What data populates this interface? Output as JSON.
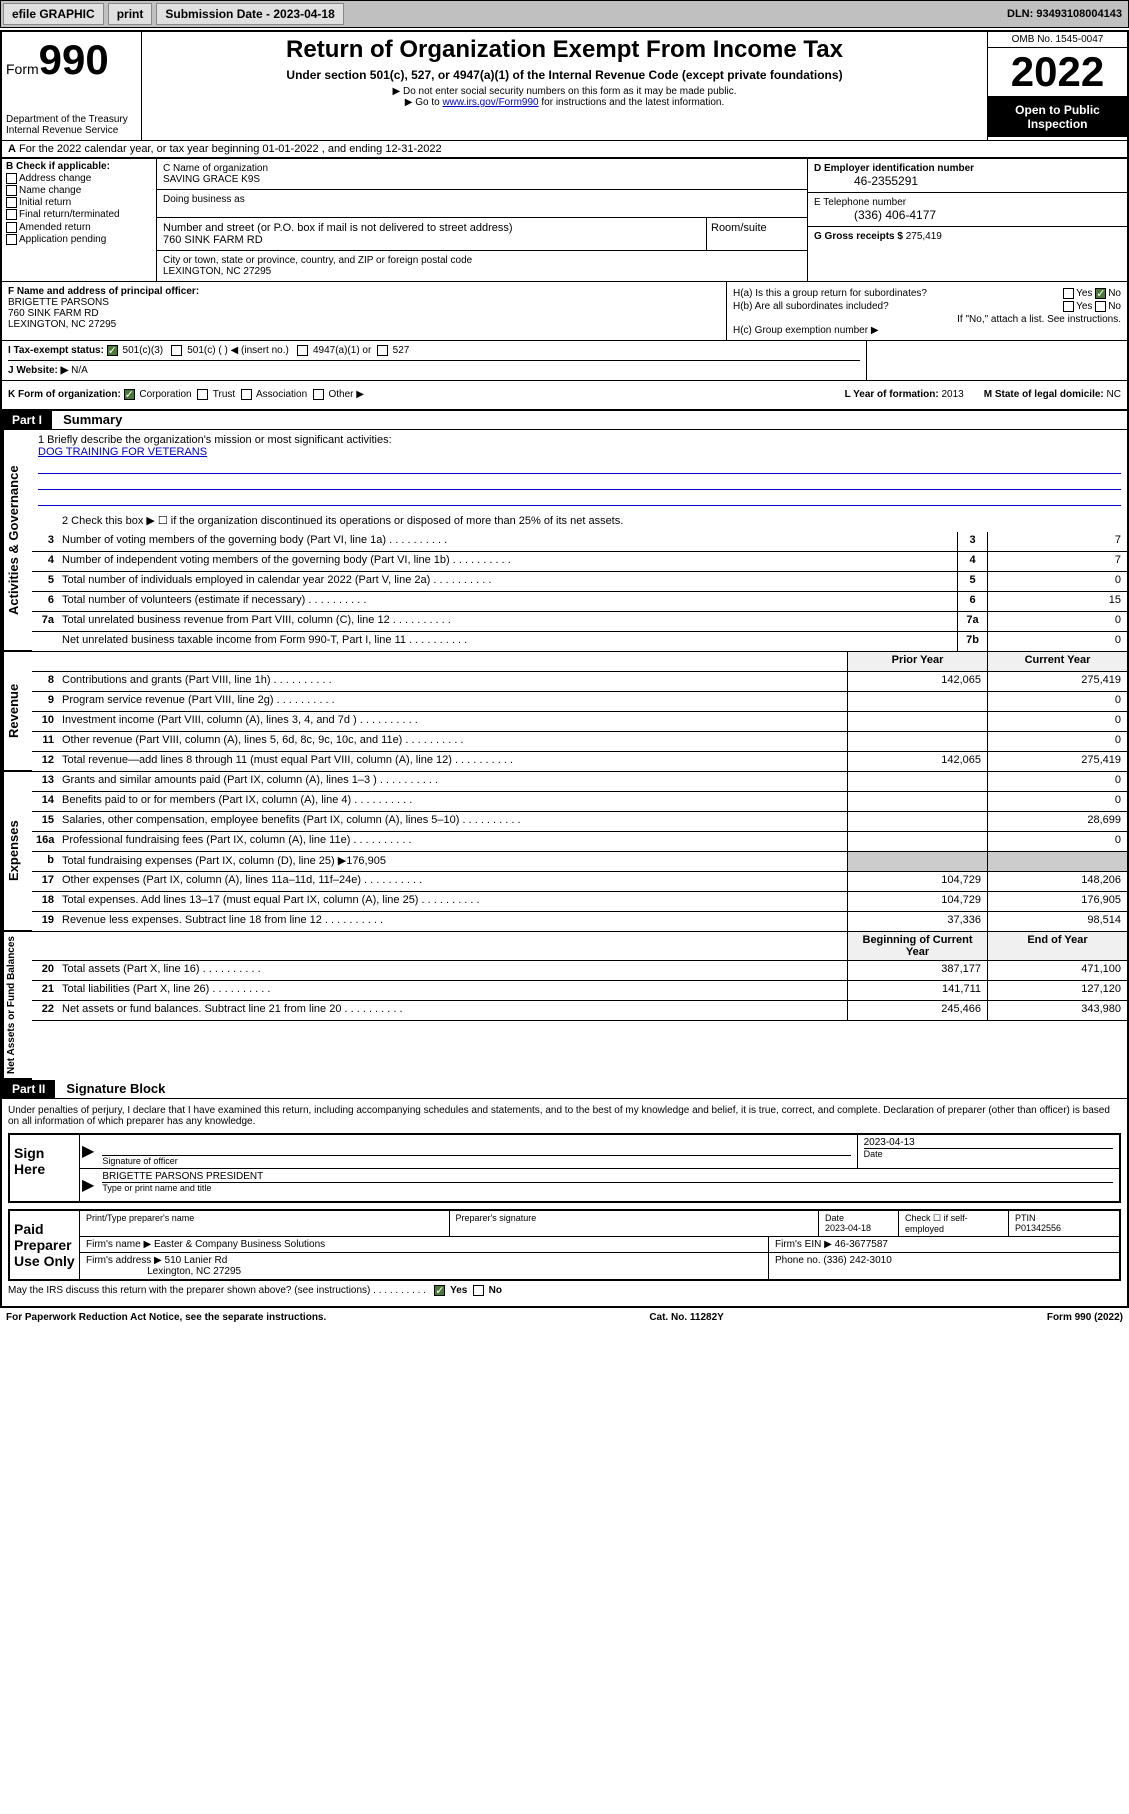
{
  "toolbar": {
    "efile": "efile GRAPHIC",
    "print": "print",
    "sub_label": "Submission Date - 2023-04-18",
    "dln": "DLN: 93493108004143"
  },
  "header": {
    "form_label": "Form",
    "form_num": "990",
    "dept": "Department of the Treasury",
    "irs": "Internal Revenue Service",
    "title": "Return of Organization Exempt From Income Tax",
    "subtitle": "Under section 501(c), 527, or 4947(a)(1) of the Internal Revenue Code (except private foundations)",
    "note1": "▶ Do not enter social security numbers on this form as it may be made public.",
    "note2_a": "▶ Go to ",
    "note2_link": "www.irs.gov/Form990",
    "note2_b": " for instructions and the latest information.",
    "omb": "OMB No. 1545-0047",
    "year": "2022",
    "inspect": "Open to Public Inspection"
  },
  "row_a": "For the 2022 calendar year, or tax year beginning 01-01-2022   , and ending 12-31-2022",
  "col_b": {
    "hdr": "B Check if applicable:",
    "opts": [
      "Address change",
      "Name change",
      "Initial return",
      "Final return/terminated",
      "Amended return",
      "Application pending"
    ]
  },
  "col_c": {
    "name_lbl": "C Name of organization",
    "name": "SAVING GRACE K9S",
    "dba_lbl": "Doing business as",
    "addr_lbl": "Number and street (or P.O. box if mail is not delivered to street address)",
    "addr": "760 SINK FARM RD",
    "room_lbl": "Room/suite",
    "city_lbl": "City or town, state or province, country, and ZIP or foreign postal code",
    "city": "LEXINGTON, NC  27295"
  },
  "col_d": {
    "ein_lbl": "D Employer identification number",
    "ein": "46-2355291",
    "tel_lbl": "E Telephone number",
    "tel": "(336) 406-4177",
    "gross_lbl": "G Gross receipts $",
    "gross": "275,419"
  },
  "col_f": {
    "lbl": "F  Name and address of principal officer:",
    "name": "BRIGETTE PARSONS",
    "addr1": "760 SINK FARM RD",
    "addr2": "LEXINGTON, NC  27295"
  },
  "col_h": {
    "ha": "H(a)  Is this a group return for subordinates?",
    "hb": "H(b)  Are all subordinates included?",
    "hb_note": "If \"No,\" attach a list. See instructions.",
    "hc": "H(c)  Group exemption number ▶"
  },
  "row_i": {
    "lbl": "I   Tax-exempt status:",
    "c3": "501(c)(3)",
    "c": "501(c) (   ) ◀ (insert no.)",
    "a1": "4947(a)(1) or",
    "s527": "527"
  },
  "row_j": {
    "lbl": "J   Website: ▶",
    "val": "N/A"
  },
  "row_k": {
    "lbl": "K Form of organization:",
    "corp": "Corporation",
    "trust": "Trust",
    "assoc": "Association",
    "other": "Other ▶",
    "l_lbl": "L Year of formation:",
    "l_val": "2013",
    "m_lbl": "M State of legal domicile:",
    "m_val": "NC"
  },
  "part1": {
    "hdr": "Part I",
    "title": "Summary"
  },
  "vtabs": {
    "gov": "Activities & Governance",
    "rev": "Revenue",
    "exp": "Expenses",
    "net": "Net Assets or Fund Balances"
  },
  "mission": {
    "lbl": "1    Briefly describe the organization's mission or most significant activities:",
    "txt": "DOG TRAINING FOR VETERANS"
  },
  "line2": "2    Check this box ▶ ☐ if the organization discontinued its operations or disposed of more than 25% of its net assets.",
  "gov_lines": [
    {
      "n": "3",
      "t": "Number of voting members of the governing body (Part VI, line 1a)",
      "c": "3",
      "v": "7"
    },
    {
      "n": "4",
      "t": "Number of independent voting members of the governing body (Part VI, line 1b)",
      "c": "4",
      "v": "7"
    },
    {
      "n": "5",
      "t": "Total number of individuals employed in calendar year 2022 (Part V, line 2a)",
      "c": "5",
      "v": "0"
    },
    {
      "n": "6",
      "t": "Total number of volunteers (estimate if necessary)",
      "c": "6",
      "v": "15"
    },
    {
      "n": "7a",
      "t": "Total unrelated business revenue from Part VIII, column (C), line 12",
      "c": "7a",
      "v": "0"
    },
    {
      "n": "",
      "t": "Net unrelated business taxable income from Form 990-T, Part I, line 11",
      "c": "7b",
      "v": "0"
    }
  ],
  "year_hdr": {
    "prior": "Prior Year",
    "curr": "Current Year"
  },
  "rev_lines": [
    {
      "n": "8",
      "t": "Contributions and grants (Part VIII, line 1h)",
      "p": "142,065",
      "c": "275,419"
    },
    {
      "n": "9",
      "t": "Program service revenue (Part VIII, line 2g)",
      "p": "",
      "c": "0"
    },
    {
      "n": "10",
      "t": "Investment income (Part VIII, column (A), lines 3, 4, and 7d )",
      "p": "",
      "c": "0"
    },
    {
      "n": "11",
      "t": "Other revenue (Part VIII, column (A), lines 5, 6d, 8c, 9c, 10c, and 11e)",
      "p": "",
      "c": "0"
    },
    {
      "n": "12",
      "t": "Total revenue—add lines 8 through 11 (must equal Part VIII, column (A), line 12)",
      "p": "142,065",
      "c": "275,419"
    }
  ],
  "exp_lines": [
    {
      "n": "13",
      "t": "Grants and similar amounts paid (Part IX, column (A), lines 1–3 )",
      "p": "",
      "c": "0"
    },
    {
      "n": "14",
      "t": "Benefits paid to or for members (Part IX, column (A), line 4)",
      "p": "",
      "c": "0"
    },
    {
      "n": "15",
      "t": "Salaries, other compensation, employee benefits (Part IX, column (A), lines 5–10)",
      "p": "",
      "c": "28,699"
    },
    {
      "n": "16a",
      "t": "Professional fundraising fees (Part IX, column (A), line 11e)",
      "p": "",
      "c": "0"
    },
    {
      "n": "b",
      "t": "Total fundraising expenses (Part IX, column (D), line 25) ▶176,905",
      "p": null,
      "c": null
    },
    {
      "n": "17",
      "t": "Other expenses (Part IX, column (A), lines 11a–11d, 11f–24e)",
      "p": "104,729",
      "c": "148,206"
    },
    {
      "n": "18",
      "t": "Total expenses. Add lines 13–17 (must equal Part IX, column (A), line 25)",
      "p": "104,729",
      "c": "176,905"
    },
    {
      "n": "19",
      "t": "Revenue less expenses. Subtract line 18 from line 12",
      "p": "37,336",
      "c": "98,514"
    }
  ],
  "net_hdr": {
    "beg": "Beginning of Current Year",
    "end": "End of Year"
  },
  "net_lines": [
    {
      "n": "20",
      "t": "Total assets (Part X, line 16)",
      "p": "387,177",
      "c": "471,100"
    },
    {
      "n": "21",
      "t": "Total liabilities (Part X, line 26)",
      "p": "141,711",
      "c": "127,120"
    },
    {
      "n": "22",
      "t": "Net assets or fund balances. Subtract line 21 from line 20",
      "p": "245,466",
      "c": "343,980"
    }
  ],
  "part2": {
    "hdr": "Part II",
    "title": "Signature Block"
  },
  "sig": {
    "decl": "Under penalties of perjury, I declare that I have examined this return, including accompanying schedules and statements, and to the best of my knowledge and belief, it is true, correct, and complete. Declaration of preparer (other than officer) is based on all information of which preparer has any knowledge.",
    "sign_here": "Sign Here",
    "sig_officer": "Signature of officer",
    "date": "Date",
    "date_val": "2023-04-13",
    "name": "BRIGETTE PARSONS  PRESIDENT",
    "name_lbl": "Type or print name and title",
    "paid": "Paid Preparer Use Only",
    "prep_name_lbl": "Print/Type preparer's name",
    "prep_sig_lbl": "Preparer's signature",
    "prep_date_lbl": "Date",
    "prep_date": "2023-04-18",
    "check_lbl": "Check ☐ if self-employed",
    "ptin_lbl": "PTIN",
    "ptin": "P01342556",
    "firm_name_lbl": "Firm's name    ▶",
    "firm_name": "Easter & Company Business Solutions",
    "firm_ein_lbl": "Firm's EIN ▶",
    "firm_ein": "46-3677587",
    "firm_addr_lbl": "Firm's address ▶",
    "firm_addr1": "510 Lanier Rd",
    "firm_addr2": "Lexington, NC  27295",
    "phone_lbl": "Phone no.",
    "phone": "(336) 242-3010",
    "discuss": "May the IRS discuss this return with the preparer shown above? (see instructions)",
    "yes": "Yes",
    "no": "No"
  },
  "footer": {
    "left": "For Paperwork Reduction Act Notice, see the separate instructions.",
    "mid": "Cat. No. 11282Y",
    "right": "Form 990 (2022)"
  }
}
